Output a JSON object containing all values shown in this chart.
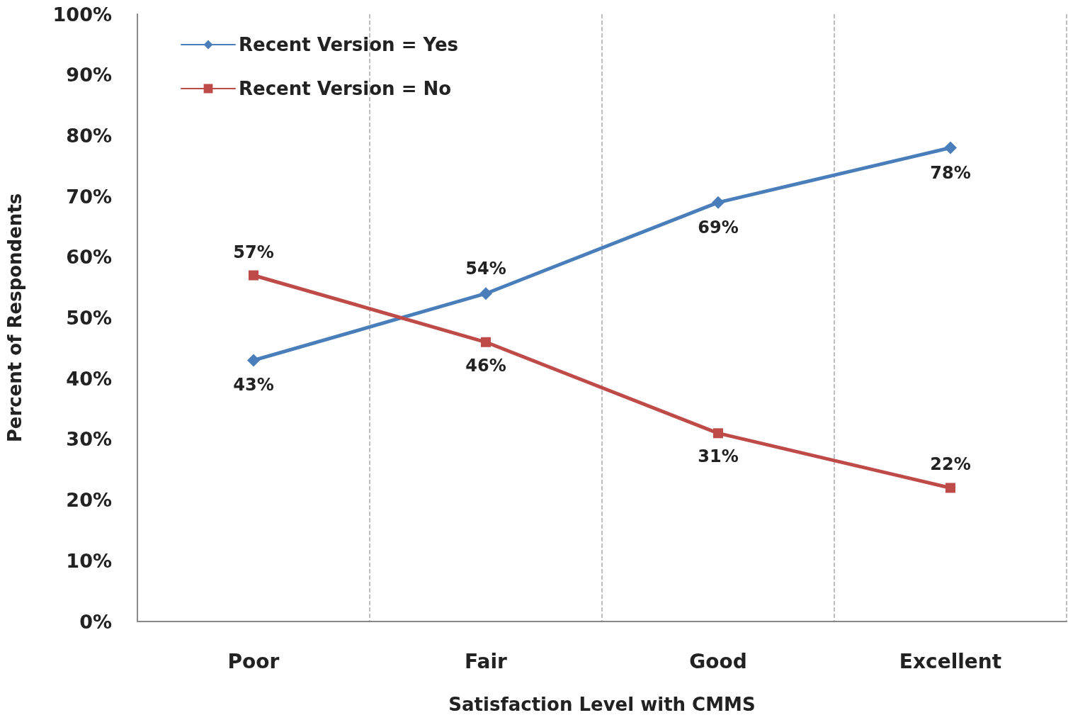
{
  "chart_data": {
    "type": "line",
    "xlabel": "Satisfaction Level with CMMS",
    "ylabel": "Percent of Respondents",
    "categories": [
      "Poor",
      "Fair",
      "Good",
      "Excellent"
    ],
    "series": [
      {
        "name": "Recent Version = Yes",
        "color": "#4a7ebb",
        "marker": "diamond",
        "values": [
          43,
          54,
          69,
          78
        ],
        "value_labels": [
          "43%",
          "54%",
          "69%",
          "78%"
        ]
      },
      {
        "name": "Recent Version = No",
        "color": "#be4b48",
        "marker": "square",
        "values": [
          57,
          46,
          31,
          22
        ],
        "value_labels": [
          "57%",
          "46%",
          "31%",
          "22%"
        ]
      }
    ],
    "ylim": [
      0,
      100
    ],
    "yticks": [
      {
        "value": 0,
        "label": "0%"
      },
      {
        "value": 10,
        "label": "10%"
      },
      {
        "value": 20,
        "label": "20%"
      },
      {
        "value": 30,
        "label": "30%"
      },
      {
        "value": 40,
        "label": "40%"
      },
      {
        "value": 50,
        "label": "50%"
      },
      {
        "value": 60,
        "label": "60%"
      },
      {
        "value": 70,
        "label": "70%"
      },
      {
        "value": 80,
        "label": "80%"
      },
      {
        "value": 90,
        "label": "90%"
      },
      {
        "value": 100,
        "label": "100%"
      }
    ],
    "grid": "x",
    "legend": "top left",
    "line_style": "solid"
  }
}
